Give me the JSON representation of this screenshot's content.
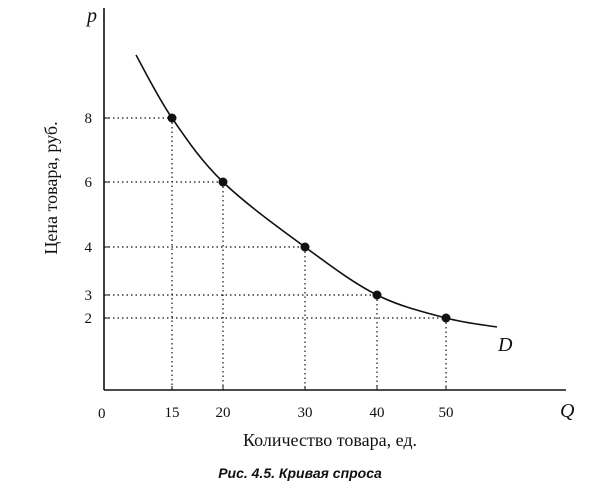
{
  "chart_data": {
    "type": "line",
    "y_axis_name": "p",
    "x_axis_name": "Q",
    "ylabel": "Цена товара, руб.",
    "xlabel": "Количество товара, ед.",
    "curve_label": "D",
    "caption": "Рис. 4.5. Кривая спроса",
    "origin_label": "0",
    "points": [
      {
        "x": 15,
        "y": 8
      },
      {
        "x": 20,
        "y": 6
      },
      {
        "x": 30,
        "y": 4
      },
      {
        "x": 40,
        "y": 3
      },
      {
        "x": 50,
        "y": 2
      }
    ],
    "x_ticks": [
      "15",
      "20",
      "30",
      "40",
      "50"
    ],
    "y_ticks": [
      "2",
      "3",
      "4",
      "6",
      "8"
    ],
    "grid": false,
    "guide_lines": "dotted"
  }
}
